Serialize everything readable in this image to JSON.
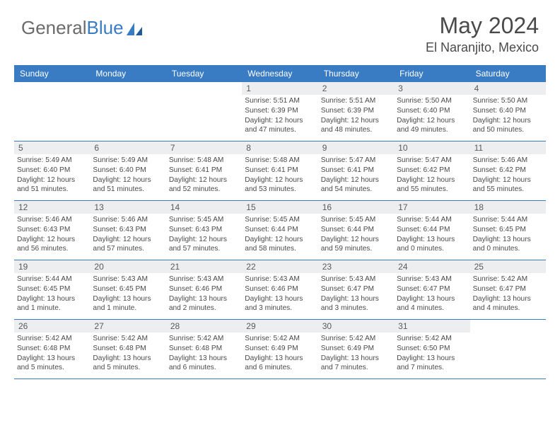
{
  "logo": {
    "text1": "General",
    "text2": "Blue"
  },
  "title": "May 2024",
  "location": "El Naranjito, Mexico",
  "colors": {
    "header_bg": "#3a7cc4",
    "header_fg": "#ffffff",
    "daynum_bg": "#eceeef",
    "text": "#4a4a4a",
    "logo_gray": "#6b6b6b",
    "logo_blue": "#3a7cc4",
    "border": "#3a7cc4",
    "page_bg": "#ffffff"
  },
  "days_of_week": [
    "Sunday",
    "Monday",
    "Tuesday",
    "Wednesday",
    "Thursday",
    "Friday",
    "Saturday"
  ],
  "weeks": [
    [
      null,
      null,
      null,
      {
        "d": "1",
        "sr": "5:51 AM",
        "ss": "6:39 PM",
        "dh": "12",
        "dm": "47 minutes"
      },
      {
        "d": "2",
        "sr": "5:51 AM",
        "ss": "6:39 PM",
        "dh": "12",
        "dm": "48 minutes"
      },
      {
        "d": "3",
        "sr": "5:50 AM",
        "ss": "6:40 PM",
        "dh": "12",
        "dm": "49 minutes"
      },
      {
        "d": "4",
        "sr": "5:50 AM",
        "ss": "6:40 PM",
        "dh": "12",
        "dm": "50 minutes"
      }
    ],
    [
      {
        "d": "5",
        "sr": "5:49 AM",
        "ss": "6:40 PM",
        "dh": "12",
        "dm": "51 minutes"
      },
      {
        "d": "6",
        "sr": "5:49 AM",
        "ss": "6:40 PM",
        "dh": "12",
        "dm": "51 minutes"
      },
      {
        "d": "7",
        "sr": "5:48 AM",
        "ss": "6:41 PM",
        "dh": "12",
        "dm": "52 minutes"
      },
      {
        "d": "8",
        "sr": "5:48 AM",
        "ss": "6:41 PM",
        "dh": "12",
        "dm": "53 minutes"
      },
      {
        "d": "9",
        "sr": "5:47 AM",
        "ss": "6:41 PM",
        "dh": "12",
        "dm": "54 minutes"
      },
      {
        "d": "10",
        "sr": "5:47 AM",
        "ss": "6:42 PM",
        "dh": "12",
        "dm": "55 minutes"
      },
      {
        "d": "11",
        "sr": "5:46 AM",
        "ss": "6:42 PM",
        "dh": "12",
        "dm": "55 minutes"
      }
    ],
    [
      {
        "d": "12",
        "sr": "5:46 AM",
        "ss": "6:43 PM",
        "dh": "12",
        "dm": "56 minutes"
      },
      {
        "d": "13",
        "sr": "5:46 AM",
        "ss": "6:43 PM",
        "dh": "12",
        "dm": "57 minutes"
      },
      {
        "d": "14",
        "sr": "5:45 AM",
        "ss": "6:43 PM",
        "dh": "12",
        "dm": "57 minutes"
      },
      {
        "d": "15",
        "sr": "5:45 AM",
        "ss": "6:44 PM",
        "dh": "12",
        "dm": "58 minutes"
      },
      {
        "d": "16",
        "sr": "5:45 AM",
        "ss": "6:44 PM",
        "dh": "12",
        "dm": "59 minutes"
      },
      {
        "d": "17",
        "sr": "5:44 AM",
        "ss": "6:44 PM",
        "dh": "13",
        "dm": "0 minutes"
      },
      {
        "d": "18",
        "sr": "5:44 AM",
        "ss": "6:45 PM",
        "dh": "13",
        "dm": "0 minutes"
      }
    ],
    [
      {
        "d": "19",
        "sr": "5:44 AM",
        "ss": "6:45 PM",
        "dh": "13",
        "dm": "1 minute"
      },
      {
        "d": "20",
        "sr": "5:43 AM",
        "ss": "6:45 PM",
        "dh": "13",
        "dm": "1 minute"
      },
      {
        "d": "21",
        "sr": "5:43 AM",
        "ss": "6:46 PM",
        "dh": "13",
        "dm": "2 minutes"
      },
      {
        "d": "22",
        "sr": "5:43 AM",
        "ss": "6:46 PM",
        "dh": "13",
        "dm": "3 minutes"
      },
      {
        "d": "23",
        "sr": "5:43 AM",
        "ss": "6:47 PM",
        "dh": "13",
        "dm": "3 minutes"
      },
      {
        "d": "24",
        "sr": "5:43 AM",
        "ss": "6:47 PM",
        "dh": "13",
        "dm": "4 minutes"
      },
      {
        "d": "25",
        "sr": "5:42 AM",
        "ss": "6:47 PM",
        "dh": "13",
        "dm": "4 minutes"
      }
    ],
    [
      {
        "d": "26",
        "sr": "5:42 AM",
        "ss": "6:48 PM",
        "dh": "13",
        "dm": "5 minutes"
      },
      {
        "d": "27",
        "sr": "5:42 AM",
        "ss": "6:48 PM",
        "dh": "13",
        "dm": "5 minutes"
      },
      {
        "d": "28",
        "sr": "5:42 AM",
        "ss": "6:48 PM",
        "dh": "13",
        "dm": "6 minutes"
      },
      {
        "d": "29",
        "sr": "5:42 AM",
        "ss": "6:49 PM",
        "dh": "13",
        "dm": "6 minutes"
      },
      {
        "d": "30",
        "sr": "5:42 AM",
        "ss": "6:49 PM",
        "dh": "13",
        "dm": "7 minutes"
      },
      {
        "d": "31",
        "sr": "5:42 AM",
        "ss": "6:50 PM",
        "dh": "13",
        "dm": "7 minutes"
      },
      null
    ]
  ],
  "labels": {
    "sunrise": "Sunrise:",
    "sunset": "Sunset:",
    "daylight": "Daylight:",
    "hours": "hours",
    "and": "and"
  }
}
